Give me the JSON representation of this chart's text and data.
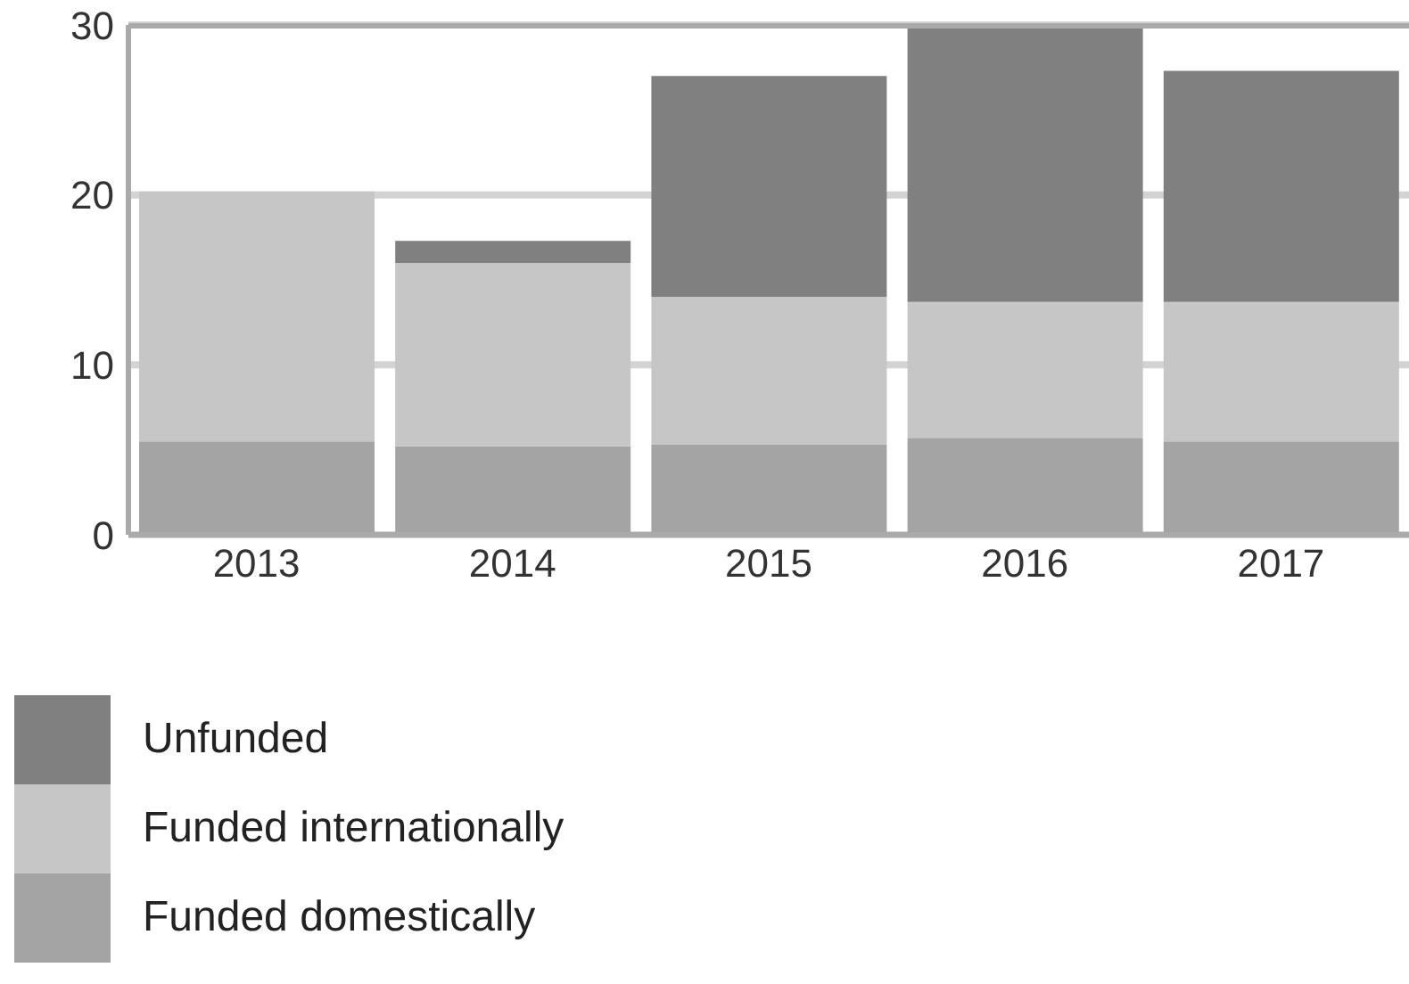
{
  "chart_data": {
    "type": "bar",
    "stacked": true,
    "categories": [
      "2013",
      "2014",
      "2015",
      "2016",
      "2017"
    ],
    "series": [
      {
        "name": "Funded domestically",
        "color": "#a4a4a4",
        "values": [
          5.5,
          5.2,
          5.3,
          5.7,
          5.5
        ]
      },
      {
        "name": "Funded internationally",
        "color": "#c6c6c6",
        "values": [
          14.7,
          10.8,
          8.7,
          8.0,
          8.2
        ]
      },
      {
        "name": "Unfunded",
        "color": "#808080",
        "values": [
          0,
          1.3,
          13.0,
          16.3,
          13.6
        ]
      }
    ],
    "ylim": [
      0,
      30
    ],
    "yticks": [
      0,
      10,
      20,
      30
    ],
    "grid": "y",
    "legend": "bottom"
  }
}
